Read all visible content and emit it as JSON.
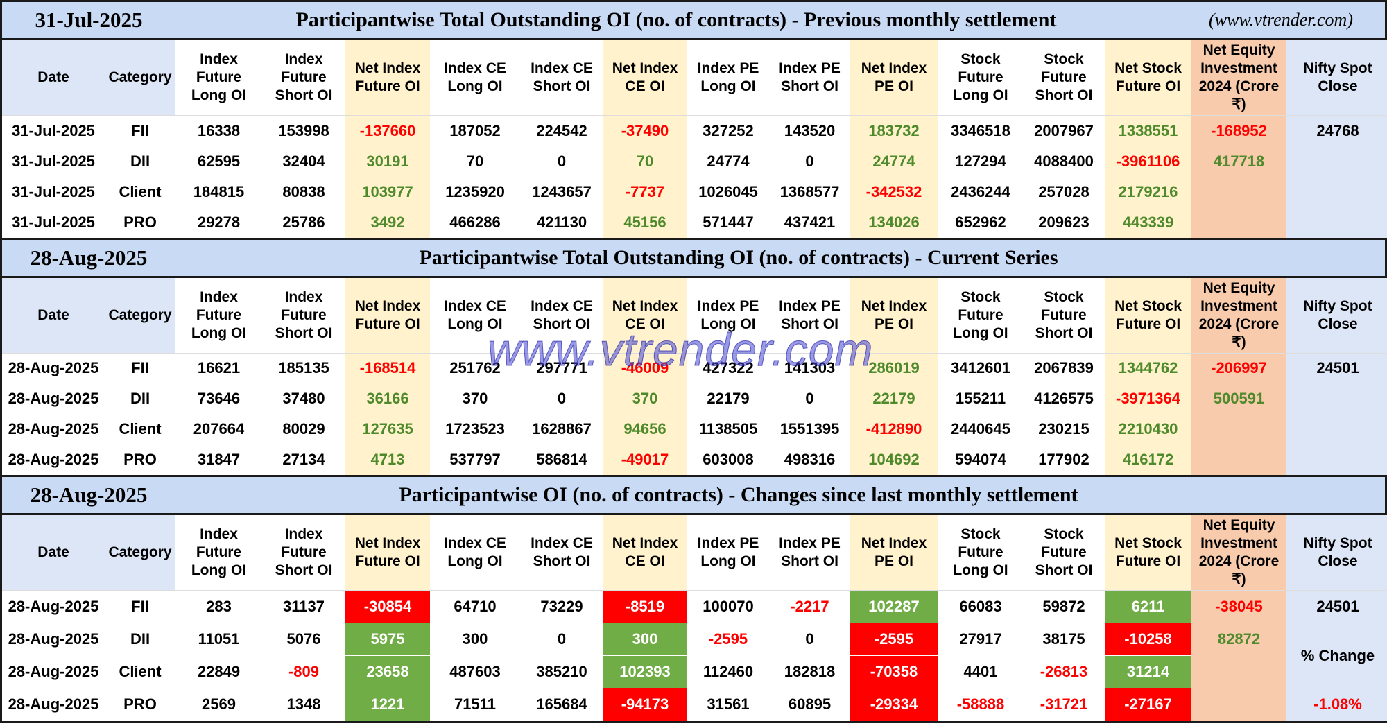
{
  "columns": [
    "Date",
    "Category",
    "Index Future Long OI",
    "Index Future Short OI",
    "Net Index Future OI",
    "Index CE Long OI",
    "Index CE Short OI",
    "Net Index CE OI",
    "Index PE Long OI",
    "Index PE Short OI",
    "Net Index PE OI",
    "Stock Future Long OI",
    "Stock Future Short OI",
    "Net Stock Future OI",
    "Net Equity Investment 2024 (Crore ₹)",
    "Nifty Spot Close"
  ],
  "watermark": "www.vtrender.com",
  "sections": [
    {
      "date": "31-Jul-2025",
      "title": "Participantwise Total Outstanding OI (no. of contracts) - Previous monthly settlement",
      "site": "(www.vtrender.com)",
      "rows": [
        [
          "31-Jul-2025",
          "FII",
          16338,
          153998,
          -137660,
          187052,
          224542,
          -37490,
          327252,
          143520,
          183732,
          3346518,
          2007967,
          1338551,
          -168952
        ],
        [
          "31-Jul-2025",
          "DII",
          62595,
          32404,
          30191,
          70,
          0,
          70,
          24774,
          0,
          24774,
          127294,
          4088400,
          -3961106,
          417718
        ],
        [
          "31-Jul-2025",
          "Client",
          184815,
          80838,
          103977,
          1235920,
          1243657,
          -7737,
          1026045,
          1368577,
          -342532,
          2436244,
          257028,
          2179216,
          null
        ],
        [
          "31-Jul-2025",
          "PRO",
          29278,
          25786,
          3492,
          466286,
          421130,
          45156,
          571447,
          437421,
          134026,
          652962,
          209623,
          443339,
          null
        ]
      ],
      "nifty": {
        "close": 24768
      }
    },
    {
      "date": "28-Aug-2025",
      "title": "Participantwise Total Outstanding OI (no. of contracts) - Current Series",
      "rows": [
        [
          "28-Aug-2025",
          "FII",
          16621,
          185135,
          -168514,
          251762,
          297771,
          -46009,
          427322,
          141303,
          286019,
          3412601,
          2067839,
          1344762,
          -206997
        ],
        [
          "28-Aug-2025",
          "DII",
          73646,
          37480,
          36166,
          370,
          0,
          370,
          22179,
          0,
          22179,
          155211,
          4126575,
          -3971364,
          500591
        ],
        [
          "28-Aug-2025",
          "Client",
          207664,
          80029,
          127635,
          1723523,
          1628867,
          94656,
          1138505,
          1551395,
          -412890,
          2440645,
          230215,
          2210430,
          null
        ],
        [
          "28-Aug-2025",
          "PRO",
          31847,
          27134,
          4713,
          537797,
          586814,
          -49017,
          603008,
          498316,
          104692,
          594074,
          177902,
          416172,
          null
        ]
      ],
      "nifty": {
        "close": 24501
      }
    },
    {
      "date": "28-Aug-2025",
      "title": "Participantwise OI (no. of contracts) - Changes since last monthly settlement",
      "rows": [
        [
          "28-Aug-2025",
          "FII",
          283,
          31137,
          -30854,
          64710,
          73229,
          -8519,
          100070,
          -2217,
          102287,
          66083,
          59872,
          6211,
          -38045
        ],
        [
          "28-Aug-2025",
          "DII",
          11051,
          5076,
          5975,
          300,
          0,
          300,
          -2595,
          0,
          -2595,
          27917,
          38175,
          -10258,
          82872
        ],
        [
          "28-Aug-2025",
          "Client",
          22849,
          -809,
          23658,
          487603,
          385210,
          102393,
          112460,
          182818,
          -70358,
          4401,
          -26813,
          31214,
          null
        ],
        [
          "28-Aug-2025",
          "PRO",
          2569,
          1348,
          1221,
          71511,
          165684,
          -94173,
          31561,
          60895,
          -29334,
          -58888,
          -31721,
          -27167,
          null
        ]
      ],
      "nifty": {
        "close": 24501,
        "label": "% Change",
        "change": "-1.08%"
      }
    }
  ]
}
